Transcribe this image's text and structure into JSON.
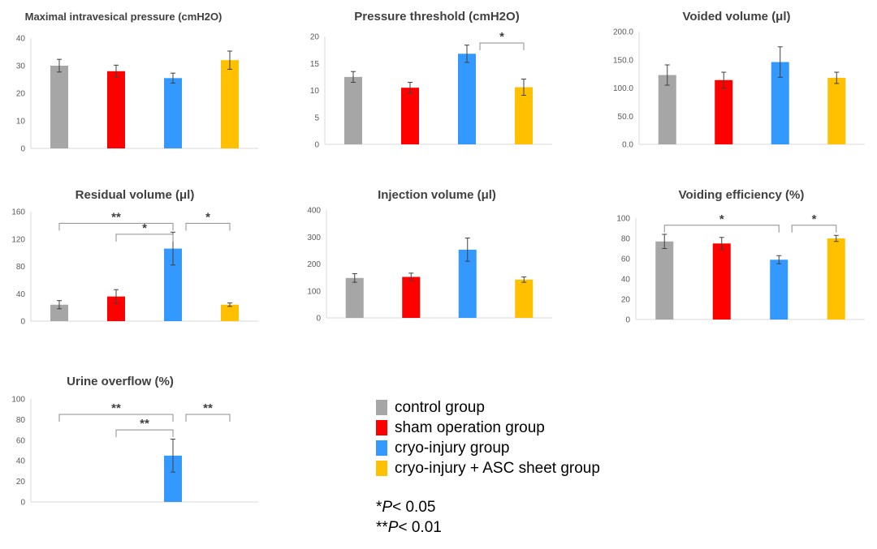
{
  "colors": {
    "control": "#a6a6a6",
    "sham": "#ff0000",
    "cryo": "#3399ff",
    "asc": "#ffc000",
    "axis": "#d9d9d9",
    "text": "#404040",
    "bracket": "#8c8c8c"
  },
  "legend": [
    {
      "label": "control group",
      "color_key": "control"
    },
    {
      "label": "sham operation group",
      "color_key": "sham"
    },
    {
      "label": "cryo-injury group",
      "color_key": "cryo"
    },
    {
      "label": "cryo-injury + ASC sheet group",
      "color_key": "asc"
    }
  ],
  "significance_notes": [
    {
      "stars": "*",
      "p": "P",
      "rest": "< 0.05"
    },
    {
      "stars": "**",
      "p": "P",
      "rest": "< 0.01"
    }
  ],
  "chart_data": [
    {
      "type": "bar",
      "title": "Maximal intravesical pressure (cmH2O)",
      "ylim": [
        0,
        40
      ],
      "ticks": [
        "0",
        "10",
        "20",
        "30",
        "40"
      ],
      "values": [
        30,
        28,
        25.5,
        32
      ],
      "errors": [
        2.3,
        2.2,
        1.8,
        3.3
      ],
      "brackets": []
    },
    {
      "type": "bar",
      "title": "Pressure threshold (cmH2O)",
      "ylim": [
        0,
        20
      ],
      "ticks": [
        "0",
        "5",
        "10",
        "15",
        "20"
      ],
      "values": [
        12.5,
        10.5,
        16.8,
        10.6
      ],
      "errors": [
        1.0,
        1.0,
        1.6,
        1.5
      ],
      "brackets": [
        {
          "from": 2,
          "to": 3,
          "label": "*",
          "level": 18.8
        }
      ]
    },
    {
      "type": "bar",
      "title": "Voided volume (μl)",
      "ylim": [
        0,
        200
      ],
      "ticks": [
        "0.0",
        "50.0",
        "100.0",
        "150.0",
        "200.0"
      ],
      "values": [
        123,
        114,
        146,
        118
      ],
      "errors": [
        18,
        14,
        27,
        10
      ],
      "brackets": []
    },
    {
      "type": "bar",
      "title": "Residual volume (μl)",
      "ylim": [
        0,
        160
      ],
      "ticks": [
        "0",
        "40",
        "80",
        "120",
        "160"
      ],
      "values": [
        24,
        36,
        106,
        24
      ],
      "errors": [
        6,
        10,
        24,
        2.5
      ],
      "brackets": [
        {
          "from": 0,
          "to": 2,
          "label": "**",
          "level": 143
        },
        {
          "from": 1,
          "to": 2,
          "label": "*",
          "level": 127
        },
        {
          "from": 2,
          "to": 3,
          "label": "*",
          "level": 143
        }
      ]
    },
    {
      "type": "bar",
      "title": "Injection volume (μl)",
      "ylim": [
        0,
        400
      ],
      "ticks": [
        "0",
        "100",
        "200",
        "300",
        "400"
      ],
      "values": [
        148,
        152,
        253,
        142
      ],
      "errors": [
        16,
        14,
        43,
        10
      ],
      "brackets": []
    },
    {
      "type": "bar",
      "title": "Voiding efficiency (%)",
      "ylim": [
        0,
        100
      ],
      "ticks": [
        "0",
        "20",
        "40",
        "60",
        "80",
        "100"
      ],
      "values": [
        77,
        75,
        59,
        80
      ],
      "errors": [
        7,
        6,
        4,
        3
      ],
      "brackets": [
        {
          "from": 0,
          "to": 2,
          "label": "*",
          "level": 93
        },
        {
          "from": 2,
          "to": 3,
          "label": "*",
          "level": 93
        }
      ]
    },
    {
      "type": "bar",
      "title": "Urine overflow (%)",
      "ylim": [
        0,
        100
      ],
      "ticks": [
        "0",
        "20",
        "40",
        "60",
        "80",
        "100"
      ],
      "values": [
        0,
        0,
        45,
        0
      ],
      "errors": [
        0,
        0,
        16,
        0
      ],
      "brackets": [
        {
          "from": 0,
          "to": 2,
          "label": "**",
          "level": 85
        },
        {
          "from": 1,
          "to": 2,
          "label": "**",
          "level": 70
        },
        {
          "from": 2,
          "to": 3,
          "label": "**",
          "level": 85
        }
      ]
    }
  ]
}
